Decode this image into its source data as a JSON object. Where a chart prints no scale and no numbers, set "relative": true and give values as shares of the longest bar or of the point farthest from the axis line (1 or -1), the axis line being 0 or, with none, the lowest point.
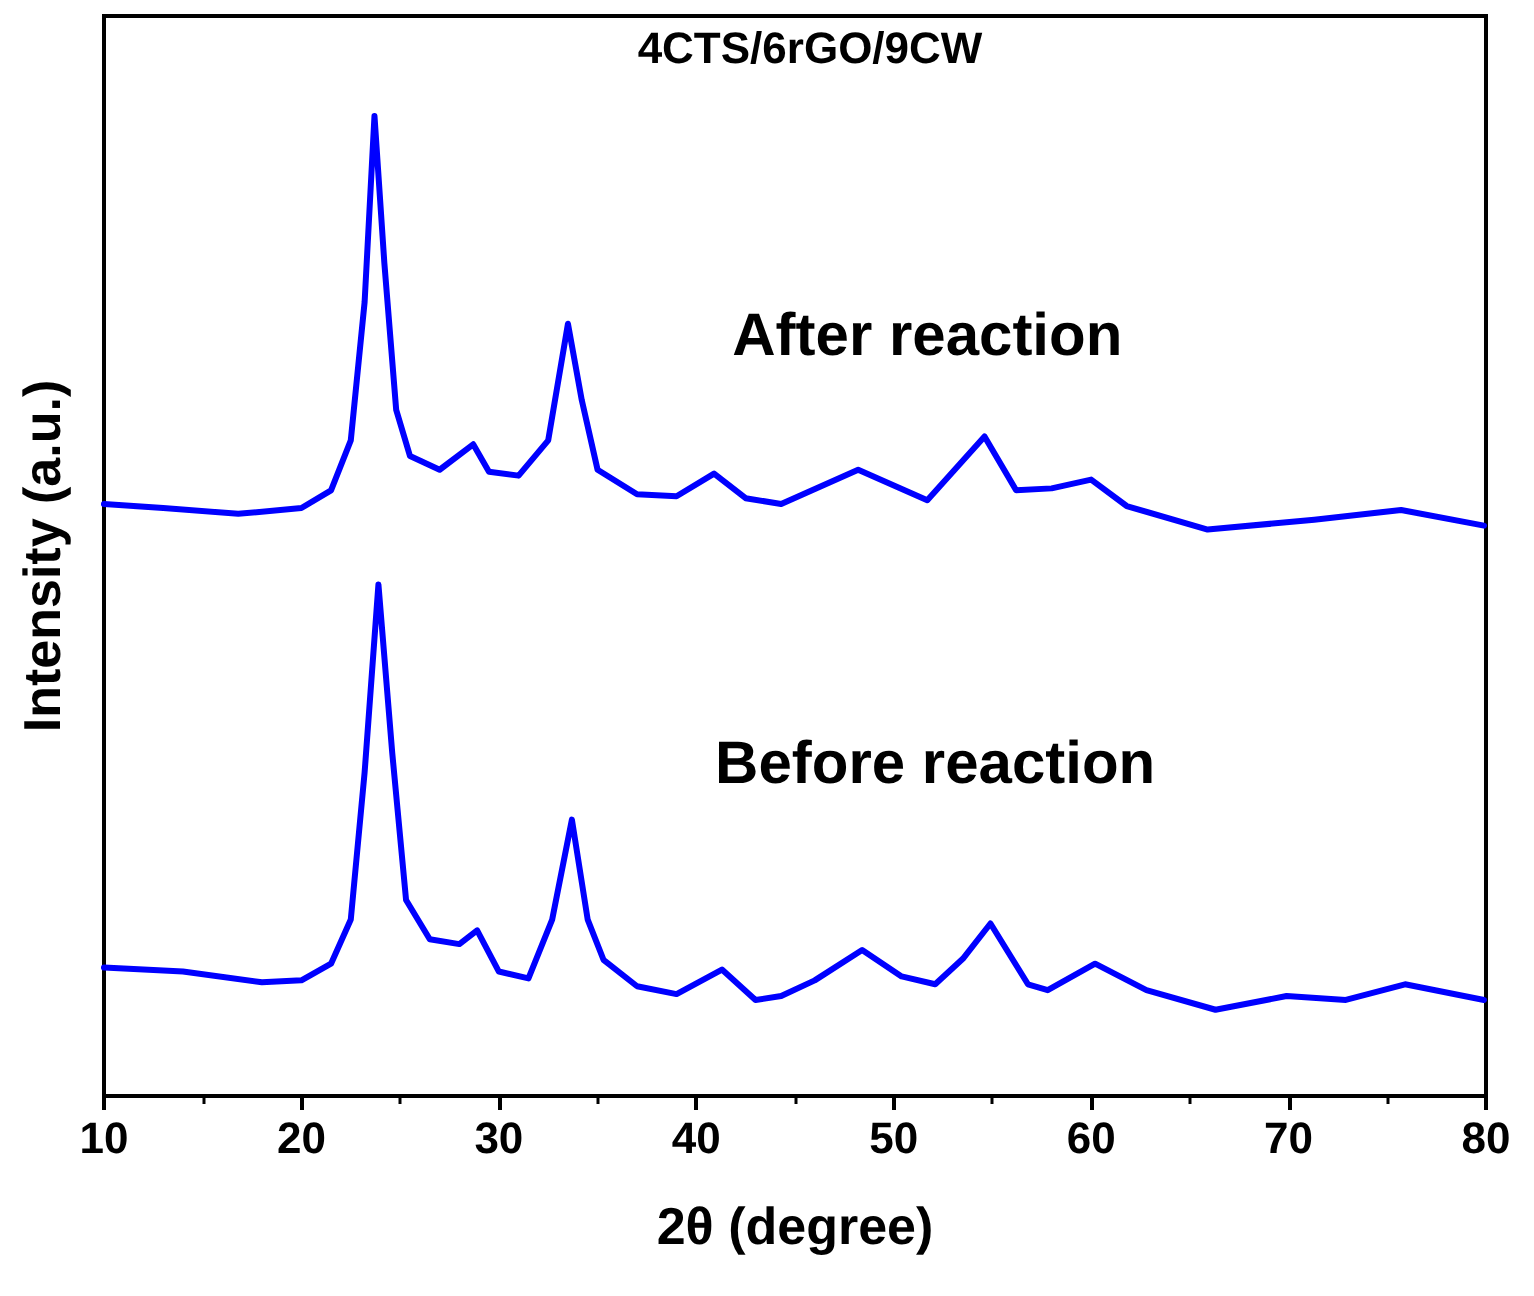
{
  "chart_data": {
    "type": "line",
    "title": "4CTS/6rGO/9CW",
    "xlabel": "2θ (degree)",
    "ylabel": "Intensity (a.u.)",
    "relative": true,
    "xlim": [
      10,
      80
    ],
    "xticks": [
      10,
      20,
      30,
      40,
      50,
      60,
      70,
      80
    ],
    "grid": false,
    "marker": "none",
    "line_style": "solid",
    "series": [
      {
        "name": "After reaction",
        "color": "#0000ff",
        "x": [
          10,
          13,
          16.8,
          20,
          21.5,
          22.5,
          23.2,
          23.7,
          24.2,
          24.8,
          25.5,
          27,
          28.7,
          29.5,
          31,
          32.5,
          33.5,
          34.2,
          35,
          37,
          39,
          40.9,
          42.5,
          44.3,
          48.2,
          51.7,
          54.6,
          56.2,
          58,
          60,
          61.8,
          65.9,
          71.3,
          75.7,
          79.9
        ],
        "values": [
          0.604,
          0.6,
          0.594,
          0.6,
          0.618,
          0.669,
          0.81,
          1,
          0.85,
          0.7,
          0.653,
          0.639,
          0.665,
          0.637,
          0.633,
          0.669,
          0.788,
          0.71,
          0.639,
          0.614,
          0.612,
          0.635,
          0.61,
          0.604,
          0.639,
          0.608,
          0.673,
          0.618,
          0.62,
          0.629,
          0.602,
          0.578,
          0.588,
          0.598,
          0.582
        ]
      },
      {
        "name": "Before reaction",
        "color": "#0000ff",
        "x": [
          10,
          14,
          18,
          20,
          21.5,
          22.5,
          23.2,
          23.9,
          24.6,
          25.3,
          26.5,
          28,
          28.9,
          30,
          31.5,
          32.7,
          33.7,
          34.5,
          35.3,
          37,
          39,
          41.3,
          43,
          44.3,
          46,
          48.4,
          50.4,
          52.1,
          53.5,
          54.9,
          56.8,
          57.8,
          60.2,
          62.8,
          66.3,
          69.9,
          72.9,
          75.9,
          79.9
        ],
        "values": [
          0.131,
          0.127,
          0.116,
          0.118,
          0.135,
          0.18,
          0.33,
          0.522,
          0.35,
          0.2,
          0.16,
          0.155,
          0.169,
          0.127,
          0.12,
          0.18,
          0.282,
          0.18,
          0.139,
          0.112,
          0.104,
          0.129,
          0.098,
          0.102,
          0.118,
          0.149,
          0.122,
          0.114,
          0.14,
          0.176,
          0.114,
          0.108,
          0.135,
          0.108,
          0.088,
          0.102,
          0.098,
          0.114,
          0.098
        ]
      }
    ]
  }
}
